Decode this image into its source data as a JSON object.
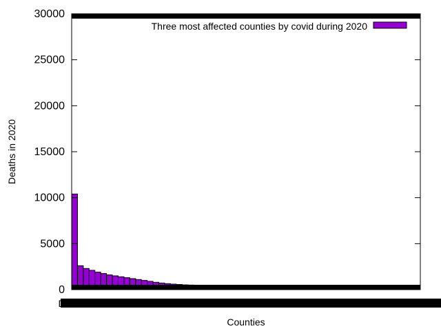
{
  "chart_data": {
    "type": "bar",
    "xlabel": "Counties",
    "ylabel": "Deaths in 2020",
    "ylim": [
      0,
      30000
    ],
    "yticks": [
      0,
      5000,
      10000,
      15000,
      20000,
      25000,
      30000
    ],
    "first_category_label": "DE",
    "legend": {
      "label": "Three most affected counties by covid during 2020",
      "position": "top-right",
      "color": "#9400d3"
    },
    "grid": false,
    "series": [
      {
        "color": "#9400d3",
        "values": [
          10400,
          2600,
          2300,
          2100,
          1900,
          1750,
          1600,
          1500,
          1400,
          1300,
          1200,
          1100,
          1000,
          900,
          800,
          720,
          650,
          600,
          560,
          520,
          500,
          480,
          460,
          440,
          420,
          410,
          400,
          390,
          380,
          370,
          360,
          350,
          340,
          330,
          320,
          310,
          300,
          290,
          280,
          270,
          260,
          250,
          240,
          230,
          220,
          210,
          200,
          190,
          180,
          170,
          160,
          150,
          140,
          130,
          120,
          110,
          100,
          90,
          80,
          70
        ]
      }
    ]
  }
}
